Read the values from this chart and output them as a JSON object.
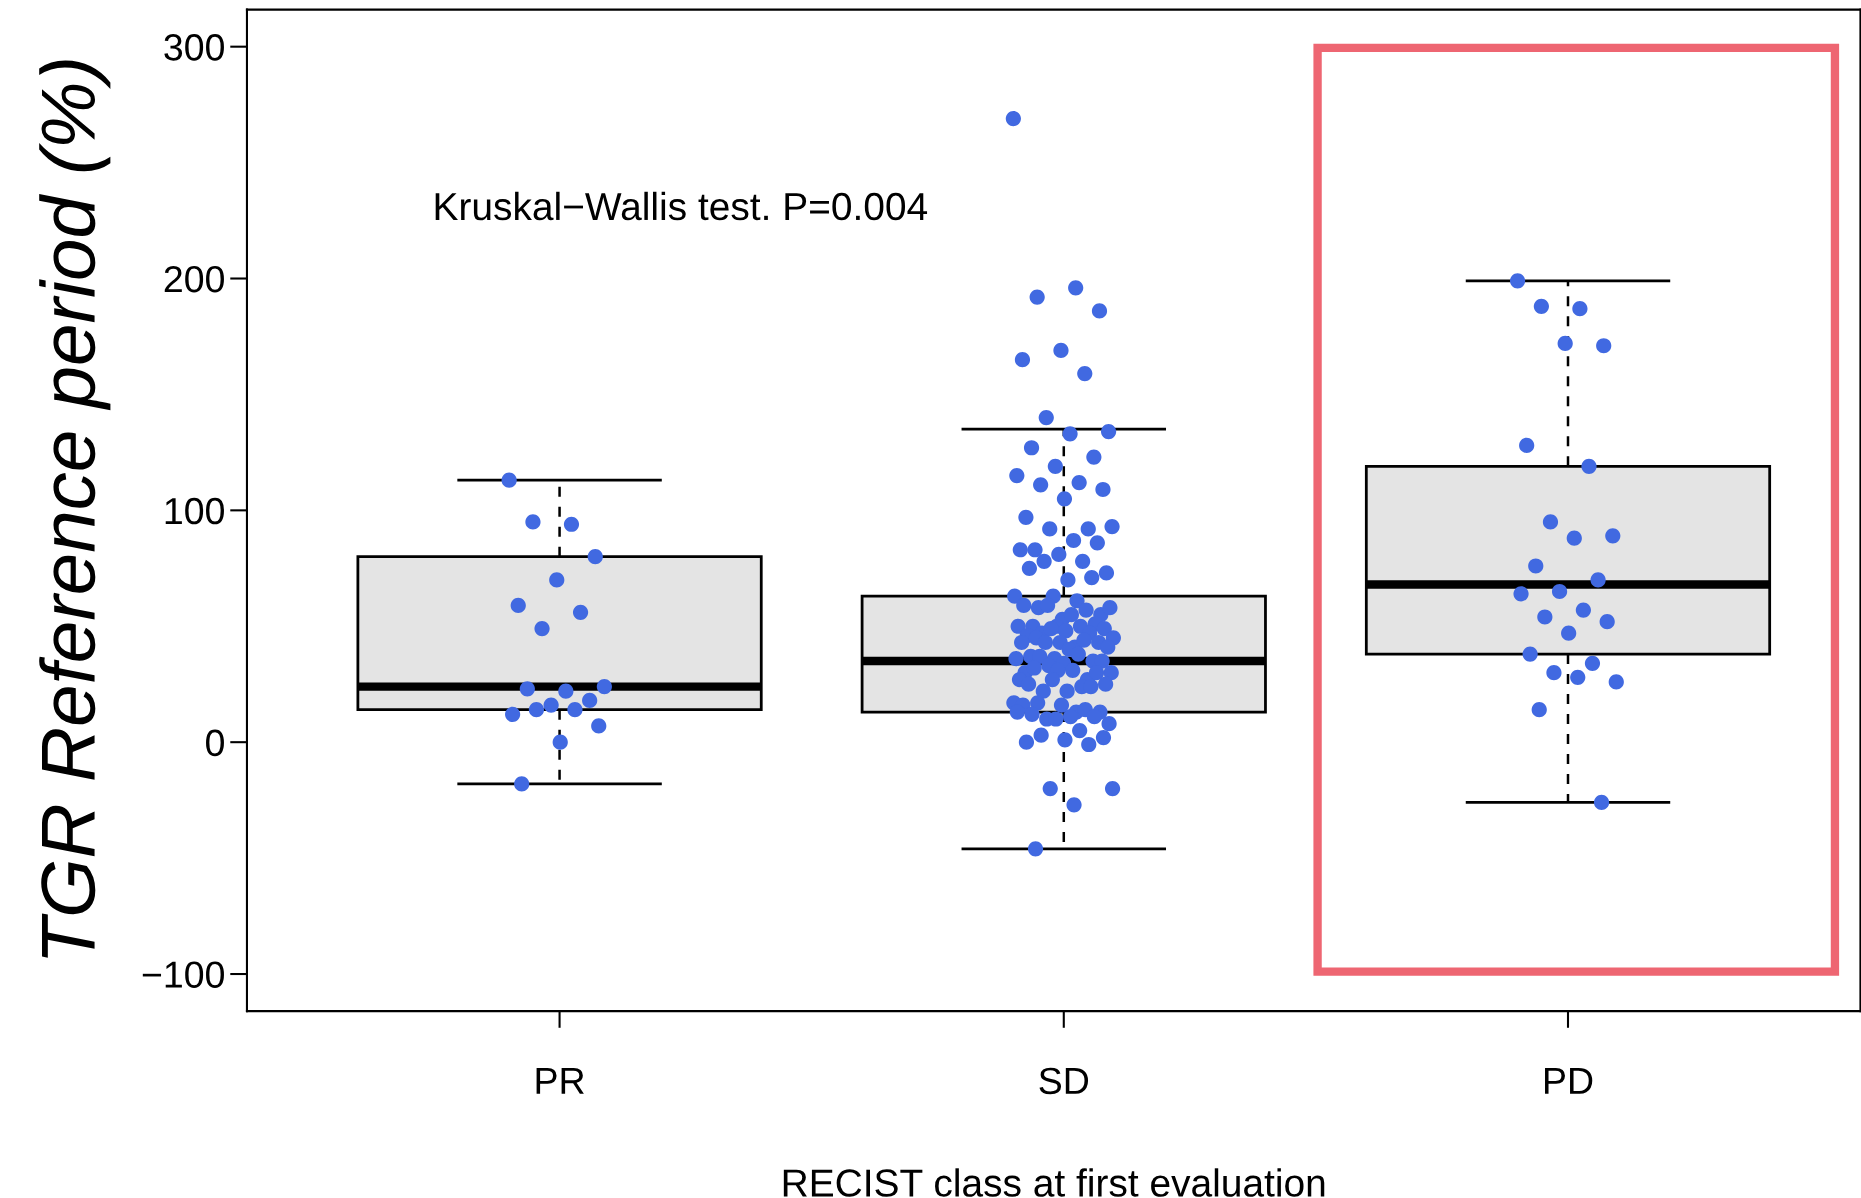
{
  "chart_data": {
    "type": "box",
    "xlabel": "RECIST class at first evaluation",
    "ylabel": "TGR Reference period (%)",
    "categories": [
      "PR",
      "SD",
      "PD"
    ],
    "boxes": [
      {
        "low": -18,
        "q1": 14,
        "median": 24,
        "q3": 80,
        "high": 113
      },
      {
        "low": -46,
        "q1": 13,
        "median": 35,
        "q3": 63,
        "high": 135
      },
      {
        "low": -26,
        "q1": 38,
        "median": 68,
        "q3": 119,
        "high": 199
      }
    ],
    "series": [
      {
        "type": "scatter",
        "color": "#4169e1",
        "x": [
          "PR",
          "PR",
          "PR",
          "PR",
          "PR",
          "PR",
          "PR",
          "PR",
          "PR",
          "PR",
          "PR",
          "PR",
          "PR",
          "PR",
          "PR",
          "PR",
          "PR",
          "PR",
          "PR"
        ],
        "values": [
          113,
          94,
          95,
          80,
          70,
          59,
          56,
          49,
          24,
          22,
          23,
          18,
          16,
          12,
          14,
          14,
          7,
          0,
          -18
        ]
      },
      {
        "type": "scatter",
        "color": "#4169e1",
        "x": [
          "SD",
          "SD",
          "SD",
          "SD",
          "SD",
          "SD",
          "SD",
          "SD",
          "SD",
          "SD",
          "SD",
          "SD",
          "SD",
          "SD",
          "SD",
          "SD",
          "SD",
          "SD",
          "SD",
          "SD",
          "SD",
          "SD",
          "SD",
          "SD",
          "SD",
          "SD",
          "SD",
          "SD",
          "SD",
          "SD",
          "SD",
          "SD",
          "SD",
          "SD",
          "SD",
          "SD",
          "SD",
          "SD",
          "SD",
          "SD",
          "SD",
          "SD",
          "SD",
          "SD",
          "SD",
          "SD",
          "SD",
          "SD",
          "SD",
          "SD",
          "SD",
          "SD",
          "SD",
          "SD",
          "SD",
          "SD",
          "SD",
          "SD",
          "SD",
          "SD",
          "SD",
          "SD",
          "SD",
          "SD",
          "SD",
          "SD",
          "SD",
          "SD",
          "SD",
          "SD",
          "SD",
          "SD",
          "SD",
          "SD",
          "SD",
          "SD",
          "SD",
          "SD",
          "SD",
          "SD",
          "SD",
          "SD",
          "SD",
          "SD",
          "SD",
          "SD",
          "SD",
          "SD",
          "SD",
          "SD",
          "SD",
          "SD",
          "SD",
          "SD",
          "SD",
          "SD",
          "SD",
          "SD",
          "SD",
          "SD",
          "SD",
          "SD",
          "SD",
          "SD",
          "SD",
          "SD",
          "SD",
          "SD",
          "SD",
          "SD",
          "SD",
          "SD",
          "SD"
        ],
        "values": [
          269,
          196,
          192,
          186,
          169,
          165,
          159,
          140,
          134,
          133,
          127,
          123,
          119,
          115,
          112,
          111,
          109,
          105,
          97,
          92,
          92,
          93,
          87,
          83,
          86,
          81,
          83,
          78,
          78,
          73,
          70,
          75,
          71,
          63,
          63,
          61,
          58,
          55,
          53,
          59,
          57,
          59,
          58,
          55,
          50,
          51,
          50,
          50,
          50,
          47,
          49,
          48,
          46,
          47,
          49,
          45,
          41,
          45,
          43,
          43,
          43,
          44,
          43,
          41,
          40,
          37,
          35,
          36,
          36,
          38,
          37,
          35,
          34,
          30,
          27,
          33,
          30,
          31,
          32,
          30,
          31,
          27,
          24,
          22,
          25,
          22,
          25,
          24,
          27,
          17,
          13,
          17,
          13,
          16,
          16,
          14,
          10,
          8,
          11,
          12,
          11,
          10,
          13,
          5,
          3,
          2,
          1,
          0,
          -1,
          -20,
          -20,
          -27,
          -46
        ]
      },
      {
        "type": "scatter",
        "color": "#4169e1",
        "x": [
          "PD",
          "PD",
          "PD",
          "PD",
          "PD",
          "PD",
          "PD",
          "PD",
          "PD",
          "PD",
          "PD",
          "PD",
          "PD",
          "PD",
          "PD",
          "PD",
          "PD",
          "PD",
          "PD",
          "PD",
          "PD",
          "PD",
          "PD",
          "PD",
          "PD"
        ],
        "values": [
          199,
          187,
          188,
          171,
          172,
          128,
          119,
          95,
          89,
          88,
          76,
          70,
          65,
          64,
          57,
          54,
          52,
          47,
          38,
          34,
          30,
          26,
          28,
          14,
          -26
        ]
      }
    ],
    "ylim": [
      -116,
      316
    ],
    "yticks": [
      {
        "value": -100,
        "label": "−100"
      },
      0,
      100,
      200,
      300
    ],
    "grid": false,
    "annotations": [
      "Kruskal−Wallis test. P=0.004"
    ]
  }
}
